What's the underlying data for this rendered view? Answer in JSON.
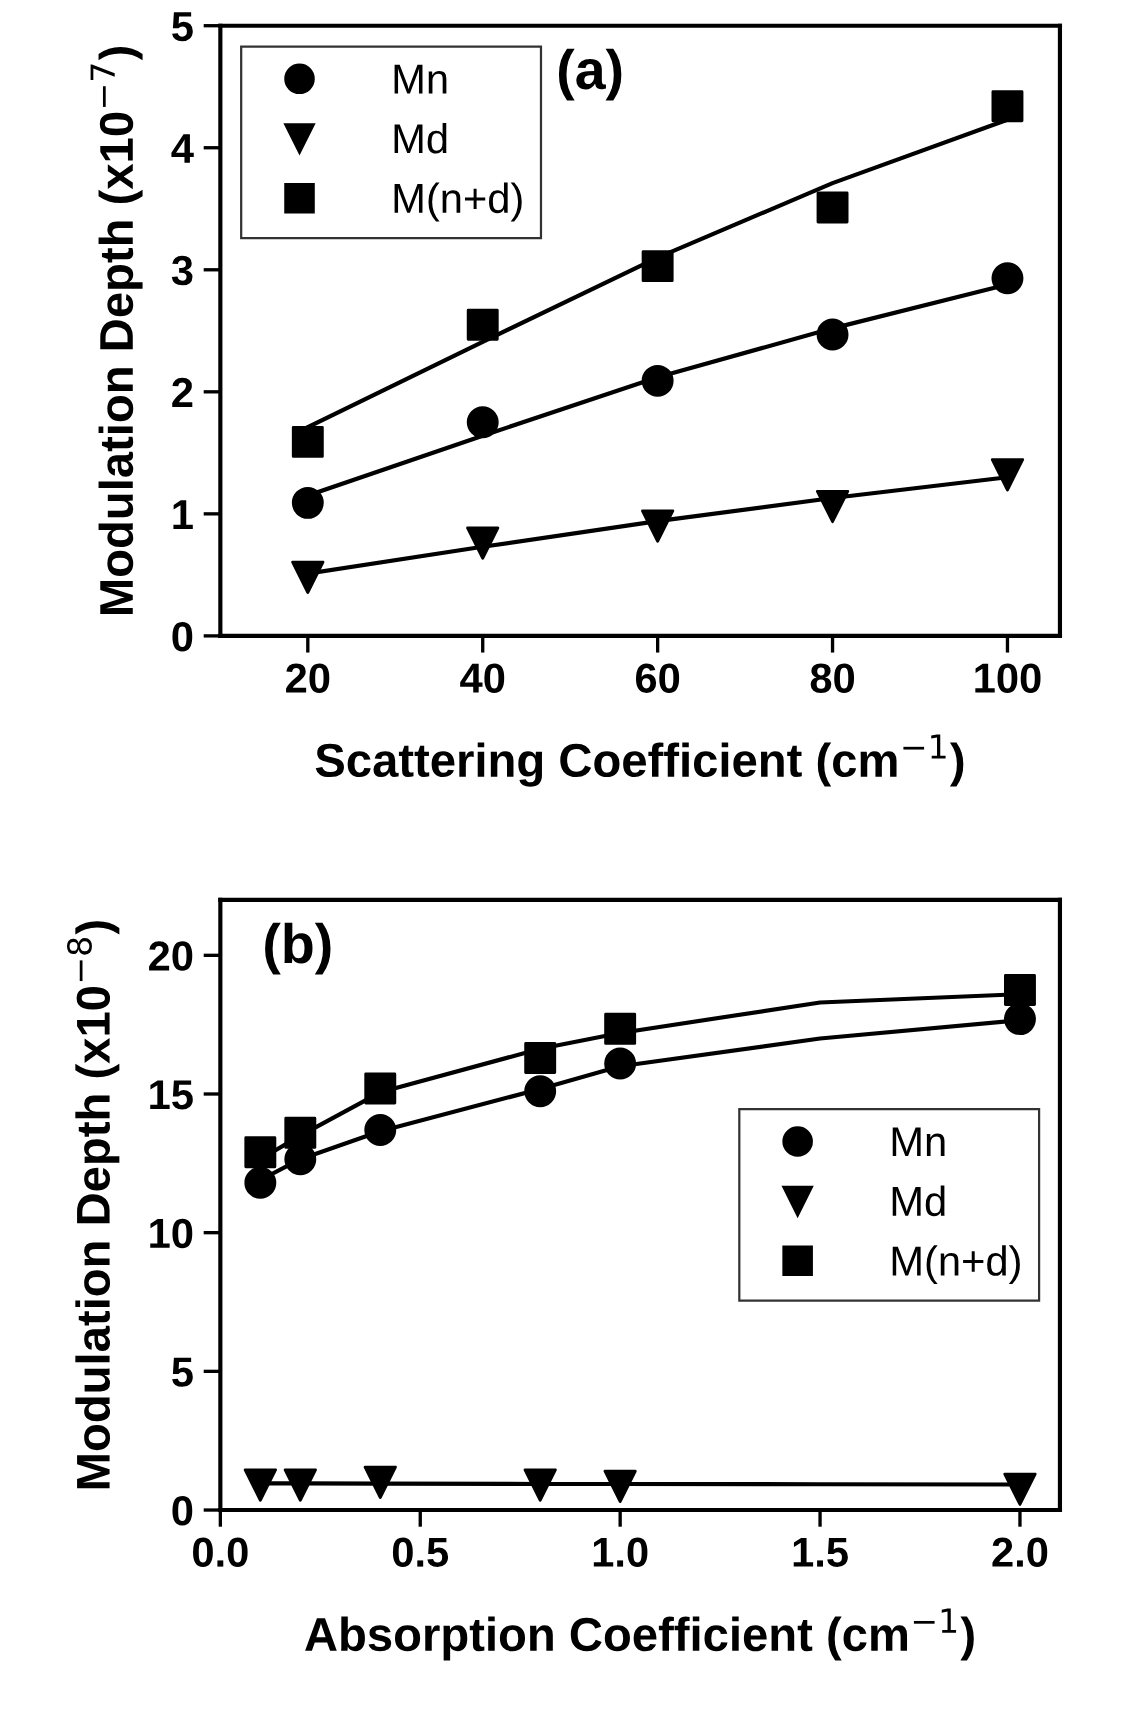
{
  "chart_data": [
    {
      "type": "scatter",
      "xlabel": "Scattering Coefficient (cm$^{−1}$)",
      "ylabel": "Modulation Depth (x10$^{−7}$)",
      "annotations": [
        "(a)"
      ],
      "x": [
        20,
        40,
        60,
        80,
        100
      ],
      "xlim": [
        10,
        106
      ],
      "xticks": [
        20,
        40,
        60,
        80,
        100
      ],
      "ylim": [
        0,
        5
      ],
      "yticks": [
        0,
        1,
        2,
        3,
        4,
        5
      ],
      "grid": false,
      "legend": "top left",
      "series": [
        {
          "name": "Mn",
          "color": "#000000",
          "marker": "circle",
          "values": [
            1.09,
            1.75,
            2.09,
            2.47,
            2.93
          ]
        },
        {
          "name": "Md",
          "color": "#000000",
          "marker": "triangle",
          "values": [
            0.48,
            0.76,
            0.9,
            1.06,
            1.32
          ]
        },
        {
          "name": "M(n+d)",
          "color": "#000000",
          "marker": "square",
          "values": [
            1.59,
            2.55,
            3.03,
            3.51,
            4.34
          ]
        },
        {
          "type": "line",
          "color": "#000000",
          "x": [
            20,
            40,
            60,
            80,
            100
          ],
          "values": [
            1.15,
            1.64,
            2.12,
            2.52,
            2.88
          ]
        },
        {
          "type": "line",
          "color": "#000000",
          "x": [
            20,
            40,
            60,
            80,
            100
          ],
          "values": [
            0.51,
            0.73,
            0.94,
            1.13,
            1.3
          ]
        },
        {
          "type": "line",
          "color": "#000000",
          "x": [
            20,
            40,
            60,
            80,
            100
          ],
          "values": [
            1.71,
            2.41,
            3.1,
            3.71,
            4.23
          ]
        }
      ]
    },
    {
      "type": "scatter",
      "xlabel": "Absorption Coefficient (cm$^{−1}$)",
      "ylabel": "Modulation Depth (x10$^{−8}$)",
      "annotations": [
        "(b)"
      ],
      "x": [
        0.1,
        0.2,
        0.4,
        0.8,
        1.0,
        2.0
      ],
      "xlim": [
        0,
        2.1
      ],
      "xticks": [
        {
          "value": 0,
          "label": "0.0"
        },
        0.5,
        {
          "value": 1,
          "label": "1.0"
        },
        1.5,
        {
          "value": 2,
          "label": "2.0"
        }
      ],
      "ylim": [
        0,
        22
      ],
      "yticks": [
        0,
        5,
        10,
        15,
        20
      ],
      "grid": false,
      "legend": "center right",
      "series": [
        {
          "name": "Mn",
          "color": "#000000",
          "marker": "circle",
          "values": [
            11.8,
            12.65,
            13.7,
            15.1,
            16.1,
            17.7
          ]
        },
        {
          "name": "Md",
          "color": "#000000",
          "marker": "triangle",
          "values": [
            0.9,
            0.9,
            1.0,
            0.9,
            0.85,
            0.75
          ]
        },
        {
          "name": "M(n+d)",
          "color": "#000000",
          "marker": "square",
          "values": [
            12.9,
            13.6,
            15.2,
            16.3,
            17.35,
            18.75
          ]
        },
        {
          "type": "line",
          "color": "#000000",
          "x": [
            0.1,
            0.2,
            0.4,
            0.8,
            1.0,
            1.5,
            2.0
          ],
          "values": [
            11.9,
            12.65,
            13.66,
            15.18,
            16.0,
            17.0,
            17.66
          ]
        },
        {
          "type": "line",
          "color": "#000000",
          "x": [
            0.1,
            0.2,
            0.4,
            0.8,
            1.0,
            1.5,
            2.0
          ],
          "values": [
            0.96,
            0.96,
            0.95,
            0.94,
            0.94,
            0.93,
            0.92
          ]
        },
        {
          "type": "line",
          "color": "#000000",
          "x": [
            0.1,
            0.2,
            0.4,
            0.8,
            1.0,
            1.5,
            2.0
          ],
          "values": [
            12.65,
            13.5,
            15.06,
            16.63,
            17.2,
            18.3,
            18.6
          ]
        }
      ]
    }
  ]
}
